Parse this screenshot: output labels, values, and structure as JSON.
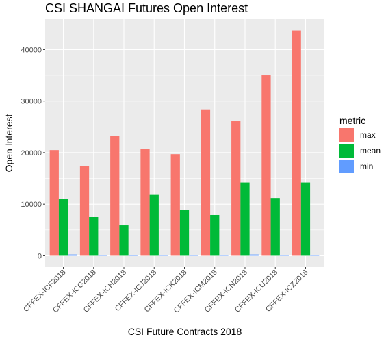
{
  "chart_data": {
    "type": "bar",
    "title": "CSI SHANGAI Futures Open Interest",
    "xlabel": "CSI Future Contracts 2018",
    "ylabel": "Open Interest",
    "categories": [
      "CFFEX-ICF2018",
      "CFFEX-ICG2018",
      "CFFEX-ICH2018",
      "CFFEX-ICJ2018",
      "CFFEX-ICK2018",
      "CFFEX-ICM2018",
      "CFFEX-ICN2018",
      "CFFEX-ICU2018",
      "CFFEX-ICZ2018"
    ],
    "series": [
      {
        "name": "max",
        "color": "#F8766D",
        "values": [
          20500,
          17400,
          23300,
          20700,
          19700,
          28400,
          26100,
          35000,
          43700
        ]
      },
      {
        "name": "mean",
        "color": "#00BA38",
        "values": [
          11000,
          7500,
          5900,
          11800,
          8900,
          7900,
          14200,
          11200,
          14200
        ]
      },
      {
        "name": "min",
        "color": "#619CFF",
        "values": [
          250,
          100,
          50,
          100,
          100,
          100,
          250,
          100,
          100
        ]
      }
    ],
    "ylim": [
      -2200,
      45900
    ],
    "yticks": [
      0,
      10000,
      20000,
      30000,
      40000
    ],
    "ytick_labels": [
      "0",
      "10000",
      "20000",
      "30000",
      "40000"
    ],
    "legend_title": "metric",
    "legend_position": "right",
    "grid": true,
    "background": "#EBEBEB",
    "grid_color": "#FFFFFF"
  }
}
